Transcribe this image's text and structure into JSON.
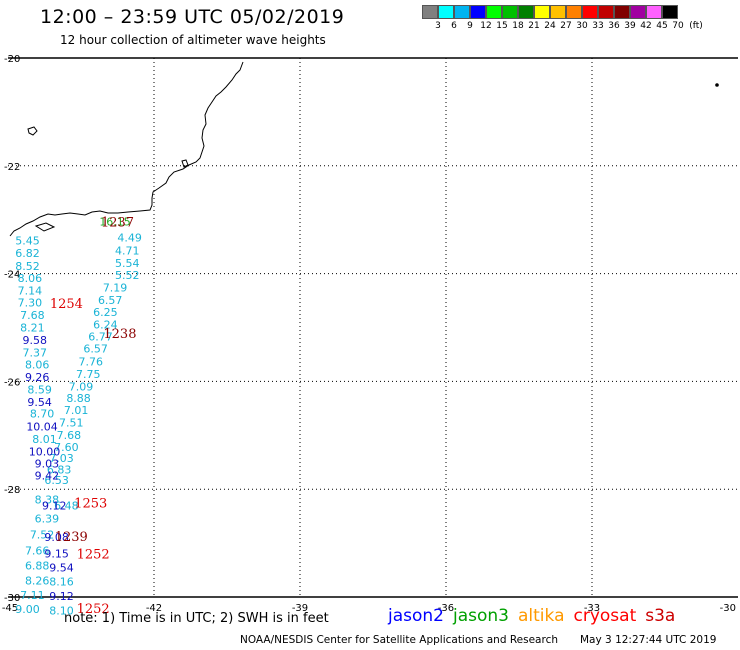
{
  "header": {
    "title": "12:00 – 23:59 UTC 05/02/2019",
    "subtitle": "12 hour collection of altimeter wave heights"
  },
  "color_scale": {
    "unit": "(ft)",
    "bins": [
      {
        "label": "3",
        "color": "#808080"
      },
      {
        "label": "6",
        "color": "#00ffff"
      },
      {
        "label": "9",
        "color": "#00b4f0"
      },
      {
        "label": "12",
        "color": "#0000ff"
      },
      {
        "label": "15",
        "color": "#00ff00"
      },
      {
        "label": "18",
        "color": "#00c000"
      },
      {
        "label": "21",
        "color": "#008000"
      },
      {
        "label": "24",
        "color": "#ffff00"
      },
      {
        "label": "27",
        "color": "#ffc000"
      },
      {
        "label": "30",
        "color": "#ff8000"
      },
      {
        "label": "33",
        "color": "#ff0000"
      },
      {
        "label": "36",
        "color": "#c00000"
      },
      {
        "label": "39",
        "color": "#800000"
      },
      {
        "label": "42",
        "color": "#a000a0"
      },
      {
        "label": "45",
        "color": "#ff60ff"
      },
      {
        "label": "70",
        "color": "#000000"
      }
    ]
  },
  "map": {
    "lon_range": [
      -45,
      -30
    ],
    "lat_range": [
      -30,
      -20
    ],
    "lon_ticks": [
      "-45",
      "-42",
      "-39",
      "-36",
      "-33",
      "-30"
    ],
    "lat_ticks": [
      "-20",
      "-22",
      "-24",
      "-26",
      "-28",
      "-30"
    ],
    "grid": "dotted"
  },
  "observations": [
    {
      "v": "16.15",
      "c": "#22aa22",
      "lon": -42.8,
      "lat": -23.03
    },
    {
      "v": "4.49",
      "c": "#19b3d6",
      "lon": -42.5,
      "lat": -23.33
    },
    {
      "v": "4.71",
      "c": "#19b3d6",
      "lon": -42.55,
      "lat": -23.57
    },
    {
      "v": "5.54",
      "c": "#19b3d6",
      "lon": -42.55,
      "lat": -23.8
    },
    {
      "v": "5.52",
      "c": "#19b3d6",
      "lon": -42.55,
      "lat": -24.03
    },
    {
      "v": "7.19",
      "c": "#19b3d6",
      "lon": -42.8,
      "lat": -24.26
    },
    {
      "v": "6.57",
      "c": "#19b3d6",
      "lon": -42.9,
      "lat": -24.49
    },
    {
      "v": "6.25",
      "c": "#19b3d6",
      "lon": -43.0,
      "lat": -24.71
    },
    {
      "v": "6.24",
      "c": "#19b3d6",
      "lon": -43.0,
      "lat": -24.94
    },
    {
      "v": "6.77",
      "c": "#19b3d6",
      "lon": -43.1,
      "lat": -25.17
    },
    {
      "v": "6.57",
      "c": "#19b3d6",
      "lon": -43.2,
      "lat": -25.39
    },
    {
      "v": "7.76",
      "c": "#19b3d6",
      "lon": -43.3,
      "lat": -25.63
    },
    {
      "v": "7.75",
      "c": "#19b3d6",
      "lon": -43.35,
      "lat": -25.86
    },
    {
      "v": "7.09",
      "c": "#19b3d6",
      "lon": -43.5,
      "lat": -26.09
    },
    {
      "v": "8.88",
      "c": "#19b3d6",
      "lon": -43.55,
      "lat": -26.31
    },
    {
      "v": "7.01",
      "c": "#19b3d6",
      "lon": -43.6,
      "lat": -26.53
    },
    {
      "v": "7.51",
      "c": "#19b3d6",
      "lon": -43.7,
      "lat": -26.76
    },
    {
      "v": "7.68",
      "c": "#19b3d6",
      "lon": -43.75,
      "lat": -26.99
    },
    {
      "v": "7.60",
      "c": "#19b3d6",
      "lon": -43.8,
      "lat": -27.22
    },
    {
      "v": "7.03",
      "c": "#19b3d6",
      "lon": -43.9,
      "lat": -27.42
    },
    {
      "v": "6.83",
      "c": "#19b3d6",
      "lon": -43.95,
      "lat": -27.63
    },
    {
      "v": "6.53",
      "c": "#19b3d6",
      "lon": -44.0,
      "lat": -27.83
    },
    {
      "v": "6.48",
      "c": "#19b3d6",
      "lon": -43.8,
      "lat": -28.3
    },
    {
      "v": "5.45",
      "c": "#19b3d6",
      "lon": -44.6,
      "lat": -23.39
    },
    {
      "v": "6.82",
      "c": "#19b3d6",
      "lon": -44.6,
      "lat": -23.62
    },
    {
      "v": "8.52",
      "c": "#19b3d6",
      "lon": -44.6,
      "lat": -23.86
    },
    {
      "v": "8.06",
      "c": "#19b3d6",
      "lon": -44.55,
      "lat": -24.08
    },
    {
      "v": "7.14",
      "c": "#19b3d6",
      "lon": -44.55,
      "lat": -24.31
    },
    {
      "v": "7.30",
      "c": "#19b3d6",
      "lon": -44.55,
      "lat": -24.54
    },
    {
      "v": "7.68",
      "c": "#19b3d6",
      "lon": -44.5,
      "lat": -24.77
    },
    {
      "v": "8.21",
      "c": "#19b3d6",
      "lon": -44.5,
      "lat": -25.0
    },
    {
      "v": "9.58",
      "c": "#1010c0",
      "lon": -44.45,
      "lat": -25.23
    },
    {
      "v": "7.37",
      "c": "#19b3d6",
      "lon": -44.45,
      "lat": -25.46
    },
    {
      "v": "8.06",
      "c": "#19b3d6",
      "lon": -44.4,
      "lat": -25.69
    },
    {
      "v": "9.26",
      "c": "#1010c0",
      "lon": -44.4,
      "lat": -25.92
    },
    {
      "v": "8.59",
      "c": "#19b3d6",
      "lon": -44.35,
      "lat": -26.15
    },
    {
      "v": "9.54",
      "c": "#1010c0",
      "lon": -44.35,
      "lat": -26.38
    },
    {
      "v": "8.70",
      "c": "#19b3d6",
      "lon": -44.3,
      "lat": -26.6
    },
    {
      "v": "10.04",
      "c": "#1010c0",
      "lon": -44.3,
      "lat": -26.84
    },
    {
      "v": "8.01",
      "c": "#19b3d6",
      "lon": -44.25,
      "lat": -27.07
    },
    {
      "v": "10.00",
      "c": "#1010c0",
      "lon": -44.25,
      "lat": -27.3
    },
    {
      "v": "9.03",
      "c": "#1010c0",
      "lon": -44.2,
      "lat": -27.52
    },
    {
      "v": "9.42",
      "c": "#1010c0",
      "lon": -44.2,
      "lat": -27.75
    },
    {
      "v": "8.38",
      "c": "#19b3d6",
      "lon": -44.2,
      "lat": -28.19
    },
    {
      "v": "9.12",
      "c": "#1010c0",
      "lon": -44.05,
      "lat": -28.3
    },
    {
      "v": "6.39",
      "c": "#19b3d6",
      "lon": -44.2,
      "lat": -28.54
    },
    {
      "v": "7.52",
      "c": "#19b3d6",
      "lon": -44.3,
      "lat": -28.84
    },
    {
      "v": "9.08",
      "c": "#1010c0",
      "lon": -44.0,
      "lat": -28.89
    },
    {
      "v": "7.66",
      "c": "#19b3d6",
      "lon": -44.4,
      "lat": -29.14
    },
    {
      "v": "9.15",
      "c": "#1010c0",
      "lon": -44.0,
      "lat": -29.19
    },
    {
      "v": "6.88",
      "c": "#19b3d6",
      "lon": -44.4,
      "lat": -29.42
    },
    {
      "v": "9.54",
      "c": "#1010c0",
      "lon": -43.9,
      "lat": -29.45
    },
    {
      "v": "8.26",
      "c": "#19b3d6",
      "lon": -44.4,
      "lat": -29.69
    },
    {
      "v": "8.16",
      "c": "#19b3d6",
      "lon": -43.9,
      "lat": -29.71
    },
    {
      "v": "7.11",
      "c": "#19b3d6",
      "lon": -44.5,
      "lat": -29.96
    },
    {
      "v": "9.12",
      "c": "#1010c0",
      "lon": -43.9,
      "lat": -29.98
    },
    {
      "v": "9.00",
      "c": "#19b3d6",
      "lon": -44.6,
      "lat": -30.22
    },
    {
      "v": "8.10",
      "c": "#19b3d6",
      "lon": -43.9,
      "lat": -30.25
    }
  ],
  "pass_times": [
    {
      "v": "1237",
      "c": "#8b0000",
      "lon": -42.75,
      "lat": -23.03
    },
    {
      "v": "1254",
      "c": "#dd0000",
      "lon": -43.8,
      "lat": -24.55
    },
    {
      "v": "1238",
      "c": "#8b0000",
      "lon": -42.7,
      "lat": -25.1
    },
    {
      "v": "1253",
      "c": "#dd0000",
      "lon": -43.3,
      "lat": -28.25
    },
    {
      "v": "1239",
      "c": "#8b0000",
      "lon": -43.7,
      "lat": -28.87
    },
    {
      "v": "1252",
      "c": "#dd0000",
      "lon": -43.25,
      "lat": -29.19
    },
    {
      "v": "1252",
      "c": "#dd0000",
      "lon": -43.25,
      "lat": -30.2
    }
  ],
  "satellite_legend": [
    {
      "name": "jason2",
      "color": "#0000ff"
    },
    {
      "name": "jason3",
      "color": "#00a000"
    },
    {
      "name": "altika",
      "color": "#ff9900"
    },
    {
      "name": "cryosat",
      "color": "#ff0000"
    },
    {
      "name": "s3a",
      "color": "#cc0000"
    }
  ],
  "footer": {
    "note": "note:  1) Time is in UTC;  2) SWH is in feet",
    "credit": "NOAA/NESDIS Center for Satellite Applications and Research",
    "timestamp": "May  3 12:27:44 UTC 2019"
  }
}
